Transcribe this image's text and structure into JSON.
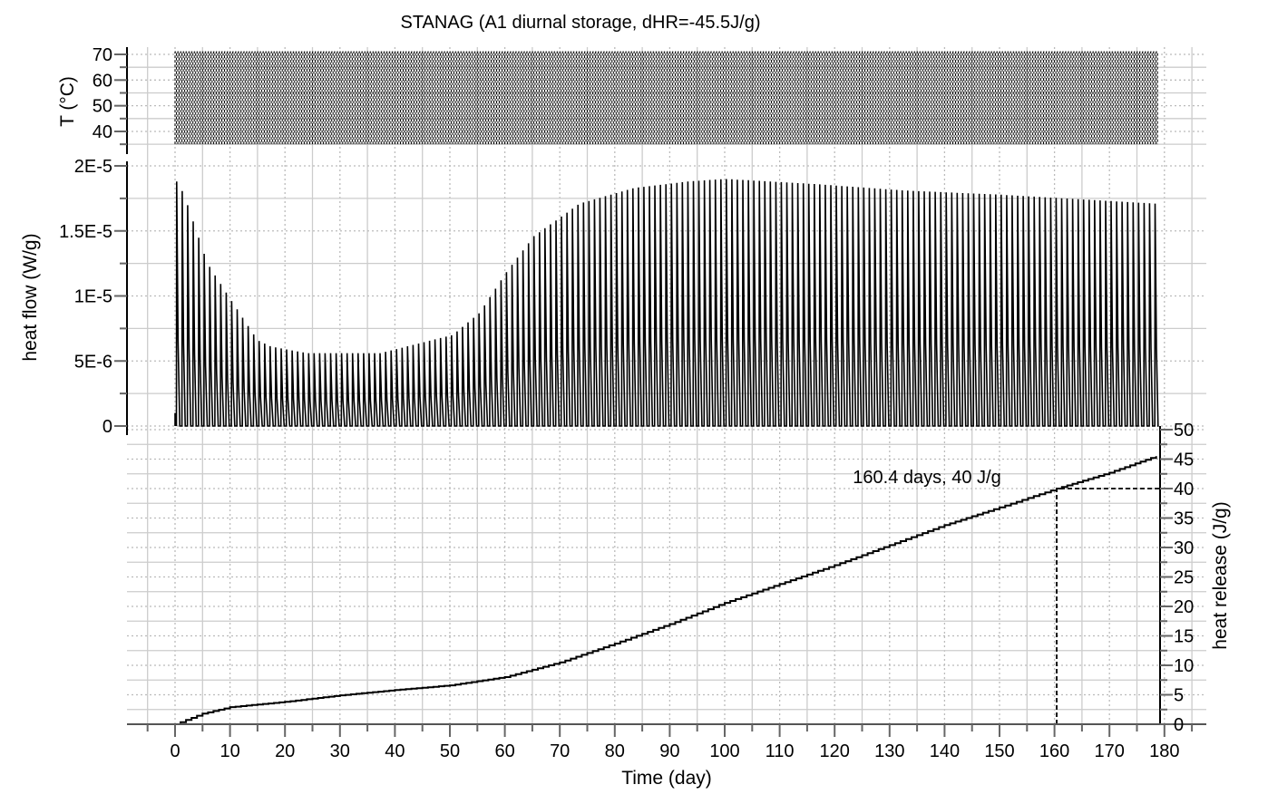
{
  "chart_data": [
    {
      "type": "line",
      "title": "STANAG (A1 diurnal storage, dHR=-45.5J/g)",
      "panel": "temperature",
      "ylabel": "T (°C)",
      "ylim": [
        37,
        72.5
      ],
      "yticks": [
        "40",
        "50",
        "60",
        "70"
      ],
      "cycle": {
        "min": 35,
        "max": 71,
        "period_day": 1,
        "days": 179
      },
      "grid": true
    },
    {
      "type": "line",
      "panel": "heat-flow",
      "ylabel": "heat flow (W/g)",
      "ylim": [
        0,
        2e-05
      ],
      "yticks": [
        "0",
        "5E-6",
        "1E-5",
        "1.5E-5",
        "2E-5"
      ],
      "envelope_x": [
        0.7,
        2,
        4,
        6.1,
        10.2,
        12.7,
        15.2,
        17.7,
        24.3,
        37.5,
        50.7,
        55.6,
        60.6,
        65.5,
        73.8,
        83.7,
        93.6,
        100.2,
        116.7,
        133.2,
        149.7,
        166.2,
        178.5
      ],
      "envelope_peak": [
        1.88e-05,
        1.76e-05,
        1.51e-05,
        1.25e-05,
        9.8e-06,
        8.2e-06,
        6.6e-06,
        6.1e-06,
        5.6e-06,
        5.6e-06,
        7e-06,
        8.7e-06,
        1.19e-05,
        1.46e-05,
        1.71e-05,
        1.83e-05,
        1.88e-05,
        1.9e-05,
        1.86e-05,
        1.81e-05,
        1.78e-05,
        1.74e-05,
        1.71e-05
      ],
      "grid": true
    },
    {
      "type": "line",
      "panel": "heat-release",
      "xlabel": "Time (day)",
      "ylabel": "heat release (J/g)",
      "xlim": [
        -8.7,
        188.8
      ],
      "ylim": [
        0,
        50
      ],
      "xticks": [
        "0",
        "10",
        "20",
        "30",
        "40",
        "50",
        "60",
        "70",
        "80",
        "90",
        "100",
        "110",
        "120",
        "130",
        "140",
        "150",
        "160",
        "170",
        "180"
      ],
      "yticks": [
        "0",
        "5",
        "10",
        "15",
        "20",
        "25",
        "30",
        "35",
        "40",
        "45",
        "50"
      ],
      "x": [
        0,
        5,
        10,
        20,
        30,
        40,
        50,
        60,
        70,
        80,
        90,
        100,
        110,
        120,
        130,
        140,
        150,
        160.4,
        170,
        178.5
      ],
      "y": [
        0,
        1.8,
        2.9,
        3.8,
        4.9,
        5.8,
        6.6,
        8.0,
        10.5,
        13.7,
        17.0,
        20.6,
        23.8,
        27.0,
        30.4,
        33.8,
        36.8,
        40.0,
        42.7,
        45.5
      ],
      "annotation": {
        "text": "160.4 days, 40 J/g",
        "x": 160.4,
        "y": 40
      },
      "grid": true
    }
  ]
}
